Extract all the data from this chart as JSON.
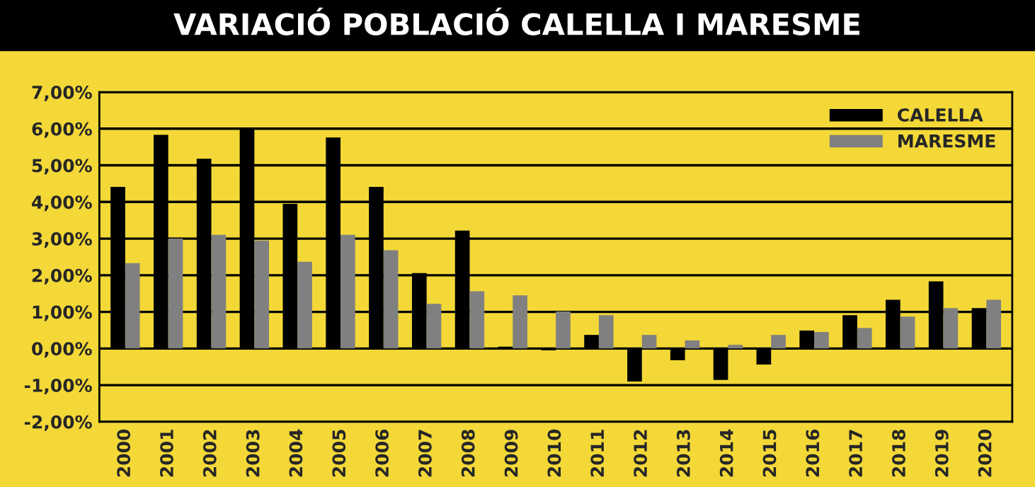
{
  "chart_data": {
    "type": "bar",
    "title": "VARIACIÓ POBLACIÓ CALELLA I MARESME",
    "categories": [
      "2000",
      "2001",
      "2002",
      "2003",
      "2004",
      "2005",
      "2006",
      "2007",
      "2008",
      "2009",
      "2010",
      "2011",
      "2012",
      "2013",
      "2014",
      "2015",
      "2016",
      "2017",
      "2018",
      "2019",
      "2020"
    ],
    "series": [
      {
        "name": "CALELLA",
        "color": "#000000",
        "values": [
          4.41,
          5.83,
          5.18,
          6.0,
          3.95,
          5.76,
          4.41,
          2.06,
          3.22,
          0.05,
          -0.05,
          0.37,
          -0.9,
          -0.32,
          -0.86,
          -0.44,
          0.49,
          0.91,
          1.33,
          1.83,
          1.1
        ]
      },
      {
        "name": "MARESME",
        "color": "#808080",
        "values": [
          2.33,
          3.0,
          3.1,
          2.95,
          2.37,
          3.1,
          2.68,
          1.22,
          1.56,
          1.45,
          1.01,
          0.91,
          0.37,
          0.22,
          0.1,
          0.37,
          0.45,
          0.56,
          0.87,
          1.1,
          1.33
        ]
      }
    ],
    "ylim": [
      -2,
      7
    ],
    "yticks": [
      {
        "value": -2,
        "label": "-2,00%"
      },
      {
        "value": -1,
        "label": "-1,00%"
      },
      {
        "value": 0,
        "label": "0,00%"
      },
      {
        "value": 1,
        "label": "1,00%"
      },
      {
        "value": 2,
        "label": "2,00%"
      },
      {
        "value": 3,
        "label": "3,00%"
      },
      {
        "value": 4,
        "label": "4,00%"
      },
      {
        "value": 5,
        "label": "5,00%"
      },
      {
        "value": 6,
        "label": "6,00%"
      },
      {
        "value": 7,
        "label": "7,00%"
      }
    ],
    "grid": "y",
    "legend": "top right"
  }
}
